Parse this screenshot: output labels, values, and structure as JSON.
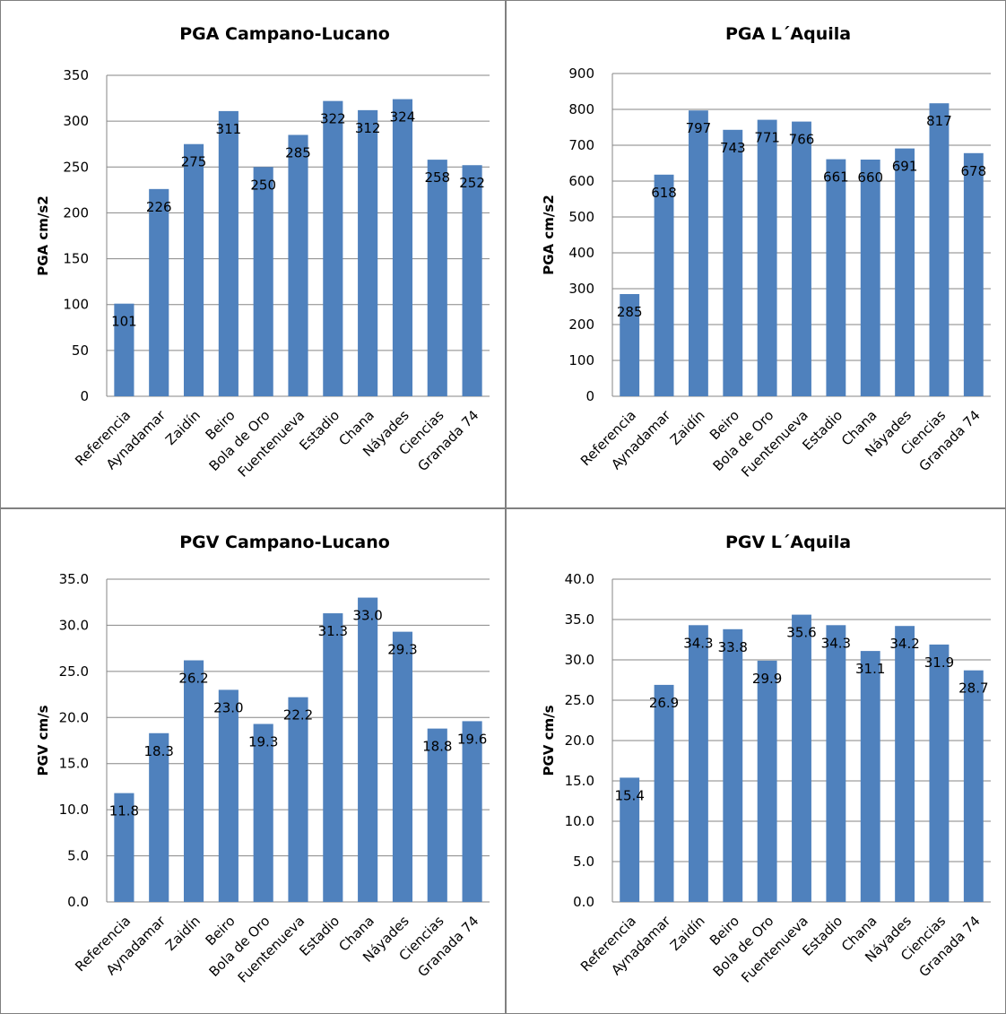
{
  "chart_data": [
    {
      "type": "bar",
      "title": "PGA Campano-Lucano",
      "ylabel": "PGA cm/s2",
      "categories": [
        "Referencia",
        "Aynadamar",
        "Zaidín",
        "Beiro",
        "Bola de Oro",
        "Fuentenueva",
        "Estadio",
        "Chana",
        "Náyades",
        "Ciencias",
        "Granada 74"
      ],
      "values": [
        101,
        226,
        275,
        311,
        250,
        285,
        322,
        312,
        324,
        258,
        252
      ],
      "value_labels": [
        "101",
        "226",
        "275",
        "311",
        "250",
        "285",
        "322",
        "312",
        "324",
        "258",
        "252"
      ],
      "ylim": [
        0,
        350
      ],
      "yticks": [
        "0",
        "50",
        "100",
        "150",
        "200",
        "250",
        "300",
        "350"
      ],
      "grid": true
    },
    {
      "type": "bar",
      "title": "PGA L´Aquila",
      "ylabel": "PGA cm/s2",
      "categories": [
        "Referencia",
        "Aynadamar",
        "Zaidín",
        "Beiro",
        "Bola de Oro",
        "Fuentenueva",
        "Estadio",
        "Chana",
        "Náyades",
        "Ciencias",
        "Granada 74"
      ],
      "values": [
        285,
        618,
        797,
        743,
        771,
        766,
        661,
        660,
        691,
        817,
        678
      ],
      "value_labels": [
        "285",
        "618",
        "797",
        "743",
        "771",
        "766",
        "661",
        "660",
        "691",
        "817",
        "678"
      ],
      "ylim": [
        0,
        900
      ],
      "yticks": [
        "0",
        "100",
        "200",
        "300",
        "400",
        "500",
        "600",
        "700",
        "800",
        "900"
      ],
      "grid": true
    },
    {
      "type": "bar",
      "title": "PGV Campano-Lucano",
      "ylabel": "PGV cm/s",
      "categories": [
        "Referencia",
        "Aynadamar",
        "Zaidín",
        "Beiro",
        "Bola de Oro",
        "Fuentenueva",
        "Estadio",
        "Chana",
        "Náyades",
        "Ciencias",
        "Granada 74"
      ],
      "values": [
        11.8,
        18.3,
        26.2,
        23.0,
        19.3,
        22.2,
        31.3,
        33.0,
        29.3,
        18.8,
        19.6
      ],
      "value_labels": [
        "11.8",
        "18.3",
        "26.2",
        "23.0",
        "19.3",
        "22.2",
        "31.3",
        "33.0",
        "29.3",
        "18.8",
        "19.6"
      ],
      "ylim": [
        0,
        35
      ],
      "yticks": [
        "0.0",
        "5.0",
        "10.0",
        "15.0",
        "20.0",
        "25.0",
        "30.0",
        "35.0"
      ],
      "grid": true
    },
    {
      "type": "bar",
      "title": "PGV L´Aquila",
      "ylabel": "PGV cm/s",
      "categories": [
        "Referencia",
        "Aynadamar",
        "Zaidín",
        "Beiro",
        "Bola de Oro",
        "Fuentenueva",
        "Estadio",
        "Chana",
        "Náyades",
        "Ciencias",
        "Granada 74"
      ],
      "values": [
        15.4,
        26.9,
        34.3,
        33.8,
        29.9,
        35.6,
        34.3,
        31.1,
        34.2,
        31.9,
        28.7
      ],
      "value_labels": [
        "15.4",
        "26.9",
        "34.3",
        "33.8",
        "29.9",
        "35.6",
        "34.3",
        "31.1",
        "34.2",
        "31.9",
        "28.7"
      ],
      "ylim": [
        0,
        40
      ],
      "yticks": [
        "0.0",
        "5.0",
        "10.0",
        "15.0",
        "20.0",
        "25.0",
        "30.0",
        "35.0",
        "40.0"
      ],
      "grid": true
    }
  ],
  "colors": {
    "bar": "#4f81bd",
    "grid": "#868686",
    "border": "#808080"
  }
}
